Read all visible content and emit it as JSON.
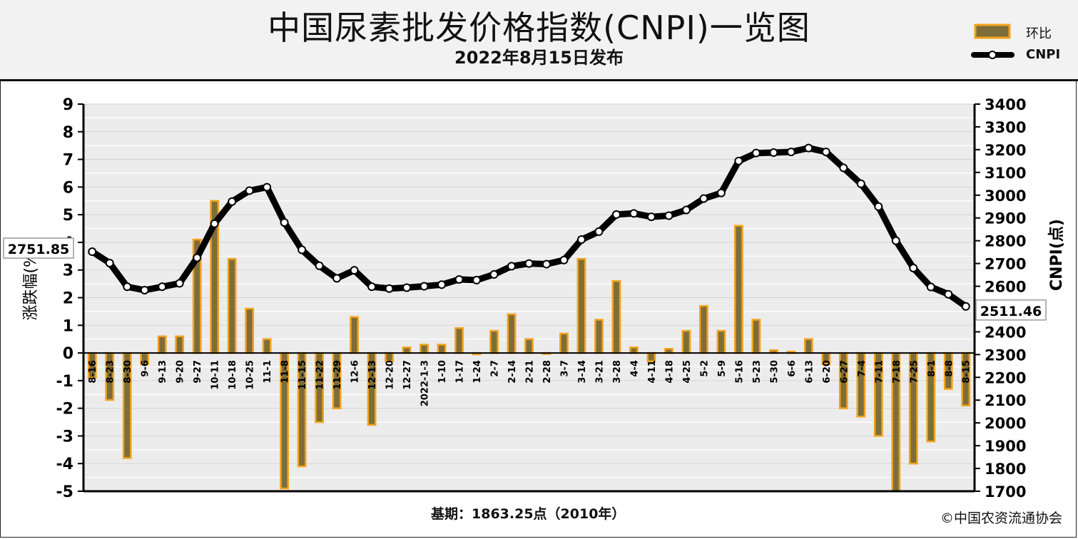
{
  "header": {
    "title": "中国尿素批发价格指数(CNPI)一览图",
    "subtitle": "2022年8月15日发布"
  },
  "legend": {
    "bar_label": "环比",
    "line_label": "CNPI"
  },
  "footer": {
    "base_note": "基期：1863.25点（2010年）",
    "copyright": "©中国农资流通协会"
  },
  "colors": {
    "bar_fill": "#7d6d3a",
    "bar_edge": "#f2a31b",
    "line": "#000000",
    "marker_fill": "#ffffff",
    "grid": "#d9d9d9",
    "plot_bg": "#ececec"
  },
  "chart_data": {
    "type": "bar+line",
    "categories": [
      "8-16",
      "8-23",
      "8-30",
      "9-6",
      "9-13",
      "9-20",
      "9-27",
      "10-11",
      "10-18",
      "10-25",
      "11-1",
      "11-8",
      "11-15",
      "11-22",
      "11-29",
      "12-6",
      "12-13",
      "12-20",
      "12-27",
      "2022-1-3",
      "1-10",
      "1-17",
      "1-24",
      "2-7",
      "2-14",
      "2-21",
      "2-28",
      "3-7",
      "3-14",
      "3-21",
      "3-28",
      "4-4",
      "4-11",
      "4-18",
      "4-25",
      "5-2",
      "5-9",
      "5-16",
      "5-23",
      "5-30",
      "6-6",
      "6-13",
      "6-20",
      "6-27",
      "7-4",
      "7-11",
      "7-18",
      "7-25",
      "8-1",
      "8-8",
      "8-15"
    ],
    "series": [
      {
        "name": "环比",
        "axis": "left",
        "type": "bar",
        "values": [
          -0.9,
          -1.7,
          -3.8,
          -0.4,
          0.6,
          0.6,
          4.1,
          5.5,
          3.4,
          1.6,
          0.5,
          -4.9,
          -4.1,
          -2.5,
          -2.0,
          1.3,
          -2.6,
          -0.3,
          0.2,
          0.3,
          0.3,
          0.9,
          -0.05,
          0.8,
          1.4,
          0.5,
          -0.03,
          0.7,
          3.4,
          1.2,
          2.6,
          0.2,
          -0.3,
          0.15,
          0.8,
          1.7,
          0.8,
          4.6,
          1.2,
          0.1,
          0.05,
          0.5,
          -0.4,
          -2.0,
          -2.3,
          -3.0,
          -5.0,
          -4.0,
          -3.2,
          -1.3,
          -1.9
        ]
      },
      {
        "name": "CNPI",
        "axis": "right",
        "type": "line",
        "values": [
          2751.85,
          2702,
          2598,
          2583,
          2598,
          2613,
          2725,
          2875,
          2972,
          3020,
          3035,
          2880,
          2760,
          2690,
          2635,
          2670,
          2598,
          2590,
          2594,
          2600,
          2607,
          2630,
          2627,
          2652,
          2688,
          2700,
          2697,
          2715,
          2805,
          2840,
          2915,
          2920,
          2905,
          2910,
          2935,
          2985,
          3010,
          3150,
          3185,
          3187,
          3190,
          3207,
          3190,
          3120,
          3050,
          2950,
          2800,
          2680,
          2597,
          2565,
          2511.46
        ]
      }
    ],
    "left_axis": {
      "label": "涨跌幅(%)",
      "min": -5,
      "max": 9,
      "ticks": [
        -5,
        -4,
        -3,
        -2,
        -1,
        0,
        1,
        2,
        3,
        4,
        5,
        6,
        7,
        8,
        9
      ]
    },
    "right_axis": {
      "label": "CNPI(点)",
      "min": 1700,
      "max": 3400,
      "ticks": [
        1700,
        1800,
        1900,
        2000,
        2100,
        2200,
        2300,
        2400,
        2500,
        2600,
        2700,
        2800,
        2900,
        3000,
        3100,
        3200,
        3300,
        3400
      ]
    },
    "callouts": {
      "first": "2751.85",
      "last": "2511.46"
    },
    "grid": true,
    "legend_position": "top-right"
  }
}
